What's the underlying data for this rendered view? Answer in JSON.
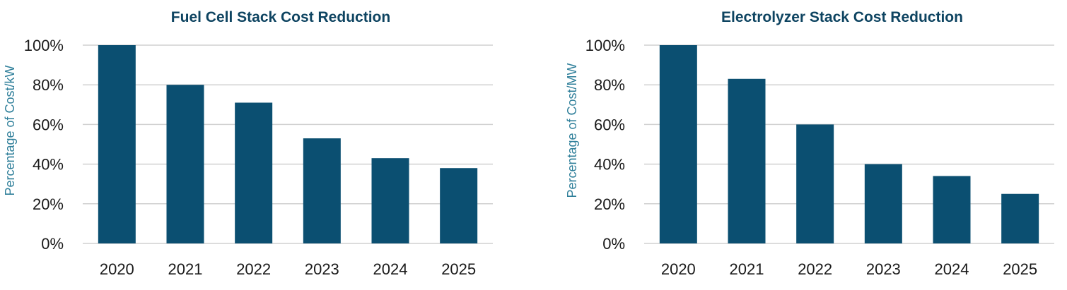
{
  "colors": {
    "bar": "#0b4f71",
    "title": "#0e4461",
    "axis_label": "#2f7f9a",
    "grid": "#d0d0d0",
    "tick_text": "#1a1a1a"
  },
  "chart_data": [
    {
      "type": "bar",
      "title": "Fuel Cell Stack Cost Reduction",
      "xlabel": "",
      "ylabel": "Percentage of Cost/kW",
      "categories": [
        "2020",
        "2021",
        "2022",
        "2023",
        "2024",
        "2025"
      ],
      "values": [
        100,
        80,
        71,
        53,
        43,
        38
      ],
      "ylim": [
        0,
        100
      ],
      "yticks": [
        0,
        20,
        40,
        60,
        80,
        100
      ],
      "ytick_labels": [
        "0%",
        "20%",
        "40%",
        "60%",
        "80%",
        "100%"
      ],
      "grid": true,
      "legend": "none"
    },
    {
      "type": "bar",
      "title": "Electrolyzer Stack Cost Reduction",
      "xlabel": "",
      "ylabel": "Percentage of Cost/MW",
      "categories": [
        "2020",
        "2021",
        "2022",
        "2023",
        "2024",
        "2025"
      ],
      "values": [
        100,
        83,
        60,
        40,
        34,
        25
      ],
      "ylim": [
        0,
        100
      ],
      "yticks": [
        0,
        20,
        40,
        60,
        80,
        100
      ],
      "ytick_labels": [
        "0%",
        "20%",
        "40%",
        "60%",
        "80%",
        "100%"
      ],
      "grid": true,
      "legend": "none"
    }
  ]
}
